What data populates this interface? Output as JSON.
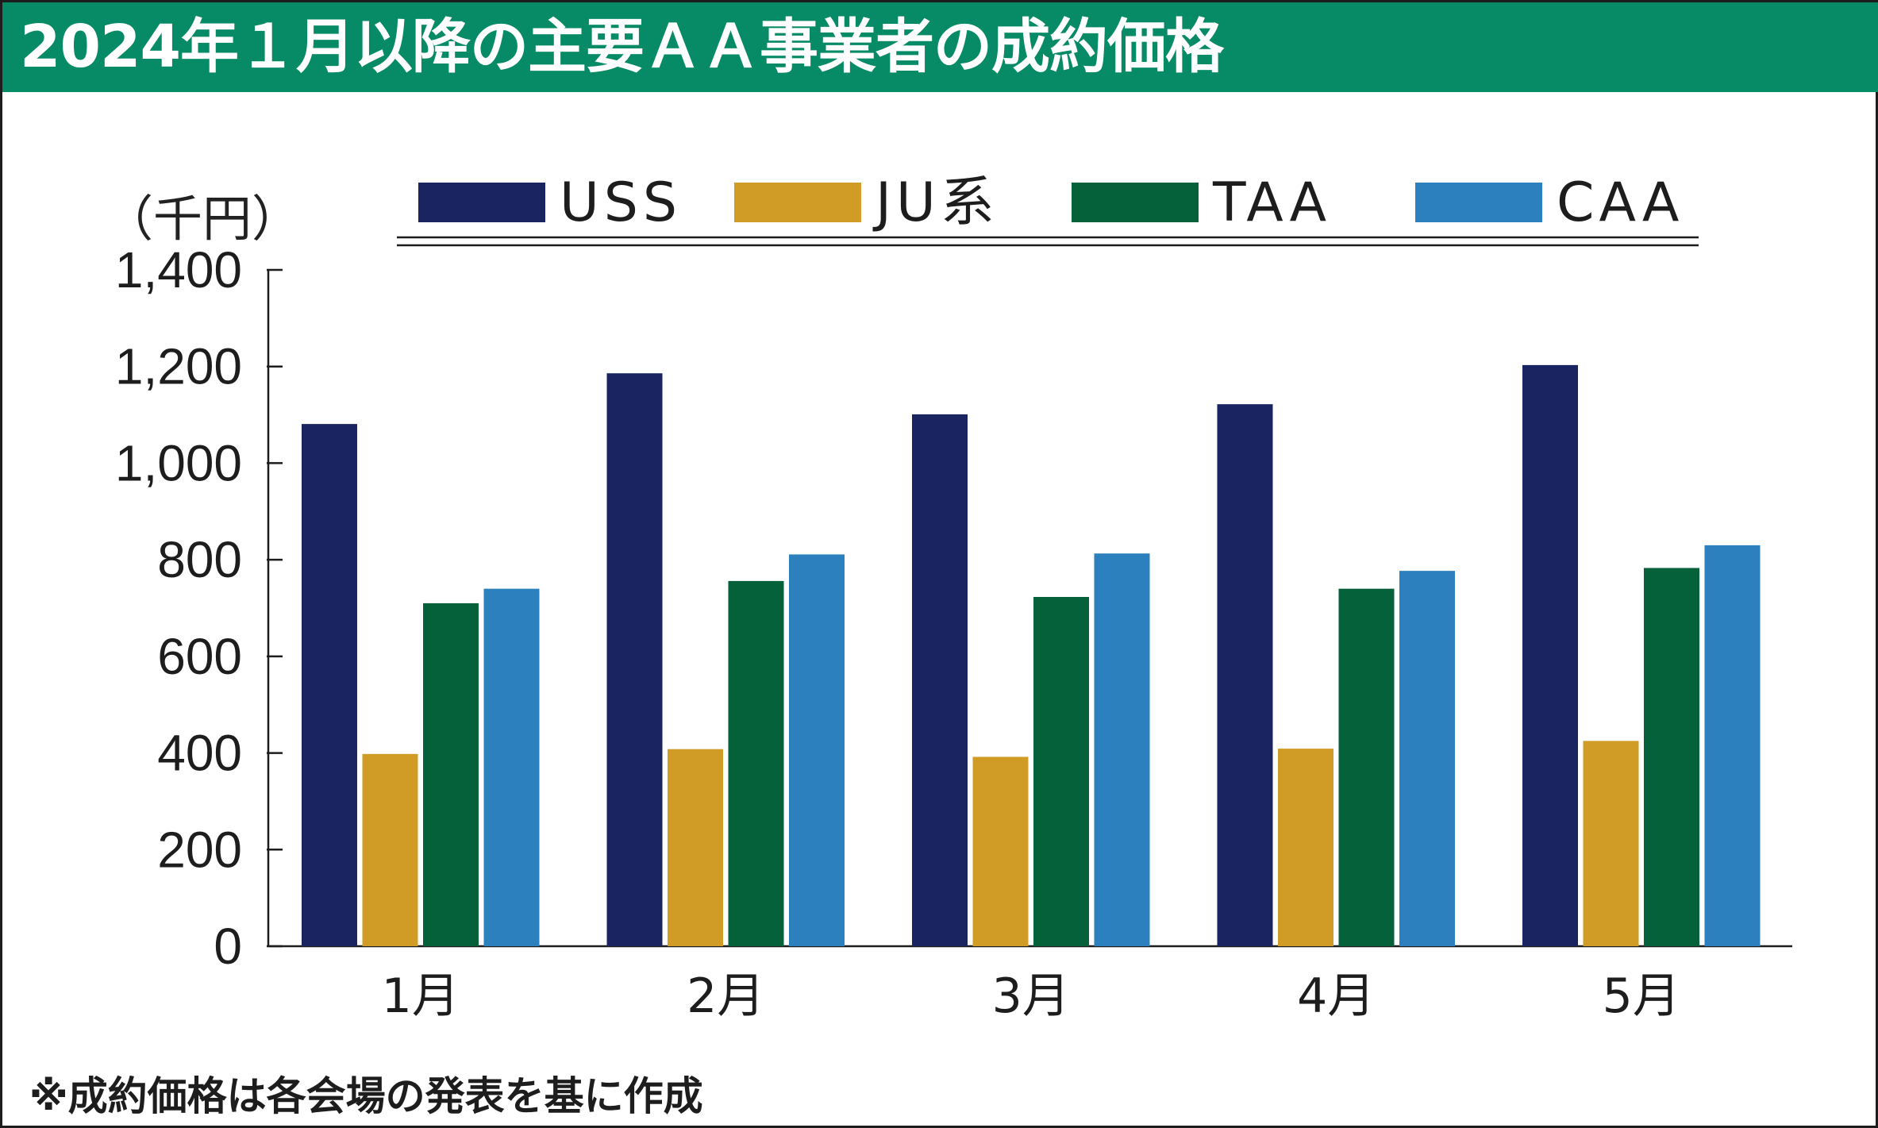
{
  "title": "2024年１月以降の主要ＡＡ事業者の成約価格",
  "unit_label": "（千円）",
  "footnote": "※成約価格は各会場の発表を基に作成",
  "colors": {
    "title_bar": "#078a66",
    "USS": "#1a2460",
    "JU系": "#d19c25",
    "TAA": "#05613a",
    "CAA": "#2b80bd"
  },
  "chart_data": {
    "type": "bar",
    "categories": [
      "1月",
      "2月",
      "3月",
      "4月",
      "5月"
    ],
    "series": [
      {
        "name": "USS",
        "values": [
          1081,
          1186,
          1101,
          1122,
          1203
        ]
      },
      {
        "name": "JU系",
        "values": [
          398,
          408,
          392,
          409,
          425
        ]
      },
      {
        "name": "TAA",
        "values": [
          710,
          756,
          723,
          740,
          783
        ]
      },
      {
        "name": "CAA",
        "values": [
          740,
          811,
          813,
          777,
          830
        ]
      }
    ],
    "ylim": [
      0,
      1400
    ],
    "yticks": [
      "0",
      "200",
      "400",
      "600",
      "800",
      "1,000",
      "1,200",
      "1,400"
    ],
    "legend_position": "top",
    "grid": false
  }
}
